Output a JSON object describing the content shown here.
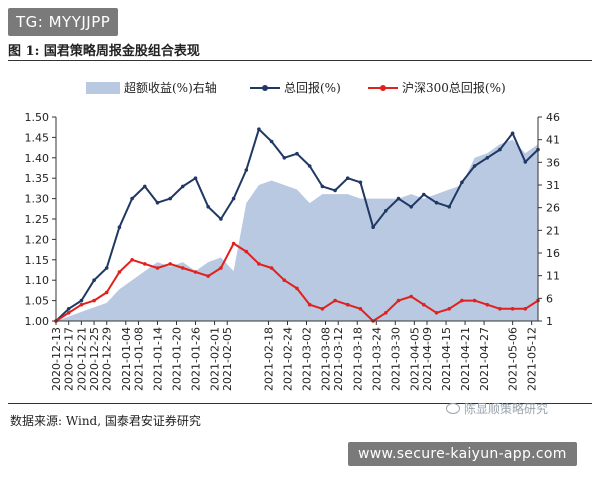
{
  "overlay_top": "TG: MYYJJPP",
  "figure_title": "图 1:  国君策略周报金股组合表现",
  "source_note": "数据来源:  Wind,  国泰君安证券研究",
  "watermark_text": "陈显顺策略研究",
  "overlay_bottom": "www.secure-kaiyun-app.com",
  "chart_data": {
    "type": "line",
    "x": [
      "2020-12-13",
      "2020-12-17",
      "2020-12-21",
      "2020-12-25",
      "2020-12-29",
      "2021-01-02",
      "2021-01-06",
      "2021-01-10",
      "2021-01-14",
      "2021-01-18",
      "2021-01-22",
      "2021-01-26",
      "2021-01-30",
      "2021-02-03",
      "2021-02-07",
      "2021-02-11",
      "2021-02-15",
      "2021-02-19",
      "2021-02-23",
      "2021-02-27",
      "2021-03-03",
      "2021-03-07",
      "2021-03-11",
      "2021-03-15",
      "2021-03-19",
      "2021-03-23",
      "2021-03-27",
      "2021-03-31",
      "2021-04-04",
      "2021-04-08",
      "2021-04-12",
      "2021-04-16",
      "2021-04-20",
      "2021-04-24",
      "2021-04-28",
      "2021-05-02",
      "2021-05-06",
      "2021-05-10",
      "2021-05-14"
    ],
    "x_tick_labels": [
      "2020-12-13",
      "2020-12-17",
      "2020-12-21",
      "2020-12-25",
      "2020-12-29",
      "2021-01-04",
      "2021-01-08",
      "2021-01-14",
      "2021-01-20",
      "2021-01-26",
      "2021-02-01",
      "2021-02-05",
      "2021-02-18",
      "2021-02-24",
      "2021-03-02",
      "2021-03-08",
      "2021-03-12",
      "2021-03-18",
      "2021-03-24",
      "2021-03-30",
      "2021-04-05",
      "2021-04-09",
      "2021-04-15",
      "2021-04-21",
      "2021-04-27",
      "2021-05-06",
      "2021-05-12"
    ],
    "series": [
      {
        "name": "超额收益(%)右轴",
        "kind": "area",
        "axis": "right",
        "color": "#b9c9e2",
        "values": [
          1,
          2,
          3,
          4,
          5,
          8,
          10,
          12,
          14,
          13,
          14,
          12,
          14,
          15,
          12,
          27,
          31,
          32,
          31,
          30,
          27,
          29,
          29,
          29,
          28,
          28,
          28,
          28,
          29,
          28,
          29,
          30,
          31,
          37,
          38,
          40,
          41,
          38,
          40
        ]
      },
      {
        "name": "总回报(%)",
        "kind": "line",
        "axis": "left",
        "color": "#1f3864",
        "values": [
          1.0,
          1.03,
          1.05,
          1.1,
          1.13,
          1.23,
          1.3,
          1.33,
          1.29,
          1.3,
          1.33,
          1.35,
          1.28,
          1.25,
          1.3,
          1.37,
          1.47,
          1.44,
          1.4,
          1.41,
          1.38,
          1.33,
          1.32,
          1.35,
          1.34,
          1.23,
          1.27,
          1.3,
          1.28,
          1.31,
          1.29,
          1.28,
          1.34,
          1.38,
          1.4,
          1.42,
          1.46,
          1.39,
          1.42
        ]
      },
      {
        "name": "沪深300总回报(%)",
        "kind": "line",
        "axis": "left",
        "color": "#e2201c",
        "values": [
          1.0,
          1.02,
          1.04,
          1.05,
          1.07,
          1.12,
          1.15,
          1.14,
          1.13,
          1.14,
          1.13,
          1.12,
          1.11,
          1.13,
          1.19,
          1.17,
          1.14,
          1.13,
          1.1,
          1.08,
          1.04,
          1.03,
          1.05,
          1.04,
          1.03,
          1.0,
          1.02,
          1.05,
          1.06,
          1.04,
          1.02,
          1.03,
          1.05,
          1.05,
          1.04,
          1.03,
          1.03,
          1.03,
          1.05
        ]
      }
    ],
    "y_left": {
      "ylim": [
        1.0,
        1.5
      ],
      "ticks": [
        "1.00",
        "1.05",
        "1.10",
        "1.15",
        "1.20",
        "1.25",
        "1.30",
        "1.35",
        "1.40",
        "1.45",
        "1.50"
      ]
    },
    "y_right": {
      "ylim": [
        1,
        46
      ],
      "ticks": [
        "1",
        "6",
        "11",
        "16",
        "21",
        "26",
        "31",
        "36",
        "41",
        "46"
      ]
    },
    "grid": false,
    "legend_position": "top"
  }
}
